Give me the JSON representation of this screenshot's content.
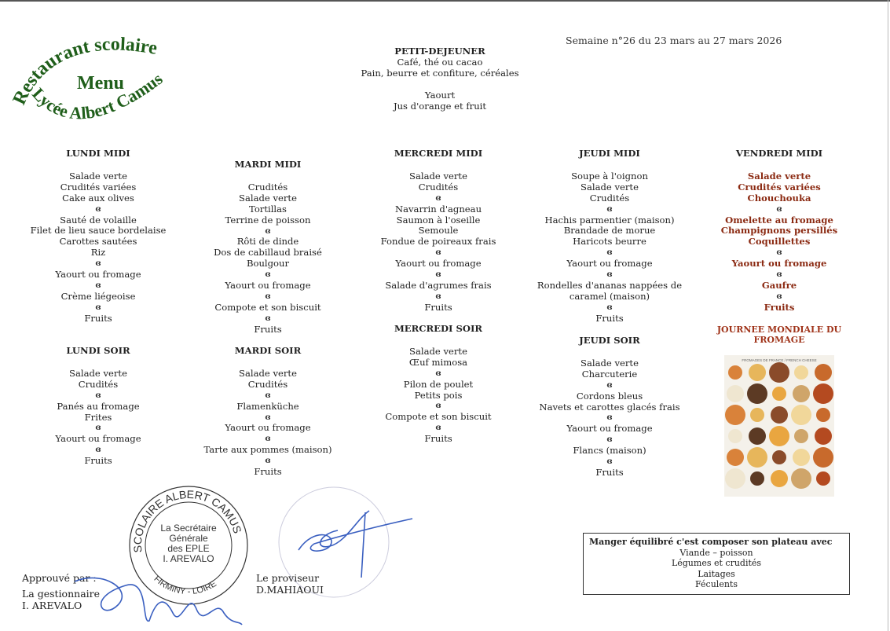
{
  "logo": {
    "line1": "Restaurant scolaire",
    "line2": "Menu",
    "line3": "Lycée Albert Camus",
    "color": "#1f5e1a"
  },
  "week": "Semaine n°26 du 23 mars au 27 mars 2026",
  "separator": "ɞ",
  "petit_dejeuner": {
    "title": "PETIT-DEJEUNER",
    "items": [
      "Café, thé ou cacao",
      "Pain, beurre et confiture, céréales",
      " ",
      "Yaourt",
      "Jus d'orange et fruit"
    ]
  },
  "lundi_midi": {
    "title": "LUNDI MIDI",
    "items": [
      "Salade verte",
      "Crudités variées",
      "Cake aux olives",
      "ɞ",
      "Sauté de volaille",
      "Filet de lieu sauce bordelaise",
      "Carottes sautées",
      "Riz",
      "ɞ",
      "Yaourt ou fromage",
      "ɞ",
      "Crème liégeoise",
      "ɞ",
      "Fruits"
    ]
  },
  "lundi_soir": {
    "title": "LUNDI SOIR",
    "items": [
      "Salade verte",
      "Crudités",
      "ɞ",
      "Panés au fromage",
      "Frites",
      "ɞ",
      "Yaourt ou fromage",
      "ɞ",
      "Fruits"
    ]
  },
  "mardi_midi": {
    "title": "MARDI MIDI",
    "items": [
      "Crudités",
      "Salade verte",
      "Tortillas",
      "Terrine de poisson",
      "ɞ",
      "Rôti de dinde",
      "Dos de cabillaud braisé",
      "Boulgour",
      "ɞ",
      "Yaourt ou fromage",
      "ɞ",
      "Compote et son biscuit",
      "ɞ",
      "Fruits"
    ]
  },
  "mardi_soir": {
    "title": "MARDI SOIR",
    "items": [
      "Salade verte",
      "Crudités",
      "ɞ",
      "Flamenküche",
      "ɞ",
      "Yaourt ou fromage",
      "ɞ",
      "Tarte aux pommes (maison)",
      "ɞ",
      "Fruits"
    ]
  },
  "mercredi_midi": {
    "title": "MERCREDI MIDI",
    "items": [
      "Salade verte",
      "Crudités",
      "ɞ",
      "Navarrin d'agneau",
      "Saumon à l'oseille",
      "Semoule",
      "Fondue de poireaux frais",
      "ɞ",
      "Yaourt ou fromage",
      "ɞ",
      "Salade d'agrumes frais",
      "ɞ",
      "Fruits"
    ]
  },
  "mercredi_soir": {
    "title": "MERCREDI SOIR",
    "items": [
      "Salade verte",
      "Œuf mimosa",
      "ɞ",
      "Pilon de poulet",
      "Petits pois",
      "ɞ",
      "Compote et son biscuit",
      "ɞ",
      "Fruits"
    ]
  },
  "jeudi_midi": {
    "title": "JEUDI MIDI",
    "items": [
      "Soupe à l'oignon",
      "Salade verte",
      "Crudités",
      "ɞ",
      "Hachis parmentier (maison)",
      "Brandade de morue",
      "Haricots beurre",
      "ɞ",
      "Yaourt ou fromage",
      "ɞ",
      "Rondelles d'ananas nappées de\ncaramel (maison)",
      "ɞ",
      "Fruits"
    ]
  },
  "jeudi_soir": {
    "title": "JEUDI SOIR",
    "items": [
      "Salade verte",
      "Charcuterie",
      "ɞ",
      "Cordons bleus",
      "Navets et carottes glacés frais",
      "ɞ",
      "Yaourt ou fromage",
      "ɞ",
      "Flancs (maison)",
      "ɞ",
      "Fruits"
    ]
  },
  "vendredi_midi": {
    "title": "VENDREDI MIDI",
    "items": [
      "Salade verte",
      "Crudités variées",
      "Chouchouka",
      "ɞ",
      "Omelette au fromage",
      "Champignons persillés",
      "Coquillettes",
      "ɞ",
      "Yaourt ou fromage",
      "ɞ",
      "Gaufre",
      "ɞ",
      "Fruits"
    ],
    "color": "#8b2a12"
  },
  "journee": "JOURNEE MONDIALE DU FROMAGE",
  "cheese_poster_caption": "FROMAGES DE FRANCE / FRENCH CHEESE",
  "equilibre": {
    "title": "Manger équilibré c'est composer son plateau avec",
    "items": [
      "Viande – poisson",
      "Légumes et crudités",
      "Laitages",
      "Féculents"
    ]
  },
  "signatures": {
    "approuve": "Approuvé par :",
    "gestionnaire": "La gestionnaire",
    "gestionnaire_name": "I. AREVALO",
    "proviseur": "Le proviseur",
    "proviseur_name": "D.MAHIAOUI",
    "stamp_ring": "SCOLAIRE ALBERT CAMUS",
    "stamp_city": "FIRMINY - LOIRE",
    "stamp_inner": [
      "La Secrétaire",
      "Générale",
      "des EPLE",
      "I. AREVALO"
    ]
  }
}
